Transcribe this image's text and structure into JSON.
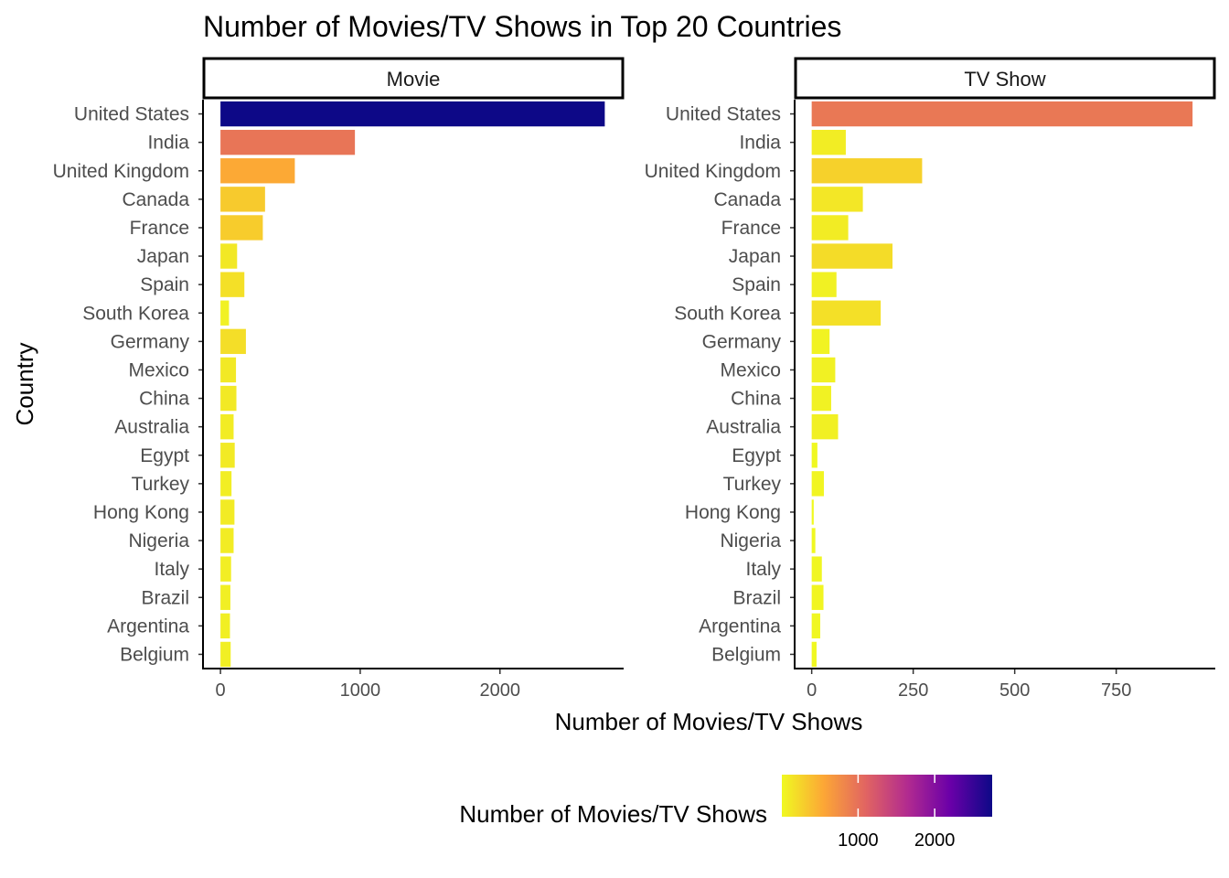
{
  "chart_data": {
    "type": "bar",
    "orientation": "horizontal",
    "title": "Number of Movies/TV Shows in Top 20 Countries",
    "xlabel": "Number of Movies/TV Shows",
    "ylabel": "Country",
    "categories": [
      "United States",
      "India",
      "United Kingdom",
      "Canada",
      "France",
      "Japan",
      "Spain",
      "South Korea",
      "Germany",
      "Mexico",
      "China",
      "Australia",
      "Egypt",
      "Turkey",
      "Hong Kong",
      "Nigeria",
      "Italy",
      "Brazil",
      "Argentina",
      "Belgium"
    ],
    "facets": [
      {
        "name": "Movie",
        "xlim": [
          -125,
          2885
        ],
        "ticks": [
          0,
          1000,
          2000
        ],
        "values": [
          2750,
          962,
          532,
          319,
          303,
          119,
          171,
          61,
          182,
          111,
          114,
          94,
          102,
          79,
          100,
          94,
          76,
          71,
          68,
          73
        ]
      },
      {
        "name": "TV Show",
        "xlim": [
          -42,
          994
        ],
        "ticks": [
          0,
          250,
          500,
          750
        ],
        "values": [
          938,
          84,
          272,
          126,
          90,
          199,
          61,
          170,
          44,
          58,
          48,
          65,
          14,
          30,
          5,
          9,
          25,
          29,
          21,
          12
        ]
      }
    ],
    "color_scale": {
      "name": "plasma",
      "domain": [
        5,
        2750
      ],
      "stops": [
        "#F0F921",
        "#FCA636",
        "#E16462",
        "#B12A90",
        "#6A00A8",
        "#0D0887"
      ]
    },
    "legend": {
      "title": "Number of Movies/TV Shows",
      "position": "bottom",
      "ticks": [
        1000,
        2000
      ]
    },
    "grid": false
  }
}
